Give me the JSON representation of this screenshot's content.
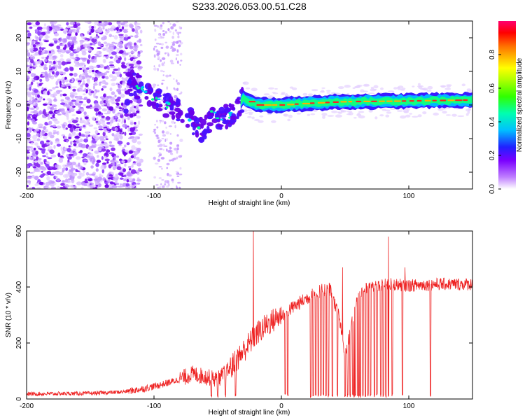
{
  "title": "S233.2026.053.00.51.C28",
  "chart_data": [
    {
      "type": "heatmap",
      "name": "spectrogram",
      "xlabel": "Height of straight line (km)",
      "ylabel": "Frequency (Hz)",
      "xlim": [
        -200,
        150
      ],
      "ylim": [
        -25,
        25
      ],
      "xticks": [
        -200,
        -100,
        0,
        100
      ],
      "yticks": [
        -20,
        -10,
        0,
        10,
        20
      ],
      "colorbar": {
        "label": "Normalized spectral amplitude",
        "range": [
          0,
          1
        ],
        "ticks": [
          0.0,
          0.2,
          0.4,
          0.6,
          0.8
        ],
        "tick_labels": [
          "0.0",
          "0.2",
          "0.4",
          "0.6",
          "0.8"
        ]
      },
      "signal_track": [
        {
          "x": -120,
          "f": 7
        },
        {
          "x": -110,
          "f": 5
        },
        {
          "x": -100,
          "f": 2
        },
        {
          "x": -90,
          "f": 0
        },
        {
          "x": -80,
          "f": -2
        },
        {
          "x": -70,
          "f": -5
        },
        {
          "x": -60,
          "f": -8
        },
        {
          "x": -55,
          "f": -2
        },
        {
          "x": -45,
          "f": -4
        },
        {
          "x": -38,
          "f": -3
        },
        {
          "x": -30,
          "f": 2
        },
        {
          "x": -20,
          "f": 0
        },
        {
          "x": 0,
          "f": 0
        },
        {
          "x": 20,
          "f": 0.5
        },
        {
          "x": 50,
          "f": 1
        },
        {
          "x": 100,
          "f": 1.2
        },
        {
          "x": 150,
          "f": 1.5
        }
      ]
    },
    {
      "type": "line",
      "name": "snr",
      "xlabel": "Height of straight line (km)",
      "ylabel": "SNR (10 * v/v)",
      "xlim": [
        -200,
        150
      ],
      "ylim": [
        0,
        600
      ],
      "xticks": [
        -200,
        -100,
        0,
        100
      ],
      "yticks": [
        0,
        200,
        400,
        600
      ],
      "series": [
        {
          "name": "SNR",
          "color": "#ee2222",
          "envelope": [
            {
              "x": -200,
              "y": 18
            },
            {
              "x": -150,
              "y": 20
            },
            {
              "x": -125,
              "y": 25
            },
            {
              "x": -110,
              "y": 35
            },
            {
              "x": -95,
              "y": 50
            },
            {
              "x": -80,
              "y": 70
            },
            {
              "x": -70,
              "y": 90
            },
            {
              "x": -60,
              "y": 80
            },
            {
              "x": -50,
              "y": 70
            },
            {
              "x": -40,
              "y": 110
            },
            {
              "x": -30,
              "y": 170
            },
            {
              "x": -20,
              "y": 230
            },
            {
              "x": -10,
              "y": 270
            },
            {
              "x": 0,
              "y": 300
            },
            {
              "x": 10,
              "y": 330
            },
            {
              "x": 20,
              "y": 360
            },
            {
              "x": 30,
              "y": 385
            },
            {
              "x": 38,
              "y": 395
            },
            {
              "x": 45,
              "y": 300
            },
            {
              "x": 50,
              "y": 150
            },
            {
              "x": 55,
              "y": 260
            },
            {
              "x": 60,
              "y": 380
            },
            {
              "x": 70,
              "y": 400
            },
            {
              "x": 85,
              "y": 410
            },
            {
              "x": 100,
              "y": 405
            },
            {
              "x": 120,
              "y": 410
            },
            {
              "x": 150,
              "y": 410
            }
          ],
          "peaks": [
            {
              "x": -22,
              "y": 600
            },
            {
              "x": 84,
              "y": 580
            },
            {
              "x": 48,
              "y": 470
            },
            {
              "x": 97,
              "y": 470
            }
          ],
          "dropouts": [
            -55,
            -50,
            -44,
            -36,
            3,
            5,
            23,
            25,
            27,
            29,
            31,
            33,
            35,
            37,
            40,
            44,
            50,
            52,
            54,
            56,
            57,
            58,
            60,
            61,
            62,
            64,
            66,
            68,
            70,
            73,
            75,
            78,
            80,
            82,
            84,
            87,
            95,
            117
          ]
        }
      ]
    }
  ]
}
